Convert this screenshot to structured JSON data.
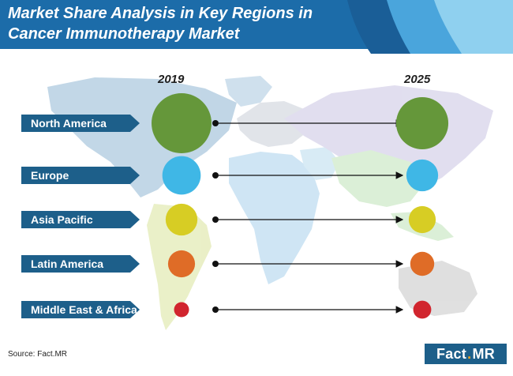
{
  "header": {
    "title_line1": "Market Share Analysis in Key Regions in",
    "title_line2": "Cancer Immunotherapy Market"
  },
  "chart_data": {
    "type": "bubble",
    "title": "Market Share Analysis in Key Regions in Cancer Immunotherapy Market",
    "years": [
      "2019",
      "2025"
    ],
    "categories": [
      "North America",
      "Europe",
      "Asia Pacific",
      "Latin America",
      "Middle East & Africa"
    ],
    "series": [
      {
        "name": "2019",
        "relative_size": [
          1.0,
          0.64,
          0.53,
          0.45,
          0.25
        ]
      },
      {
        "name": "2025",
        "relative_size": [
          0.87,
          0.53,
          0.45,
          0.4,
          0.3
        ]
      }
    ],
    "colors": [
      "#65973a",
      "#3fb7e6",
      "#d7cd24",
      "#df6c27",
      "#d1252e"
    ]
  },
  "footer": {
    "source": "Source: Fact.MR",
    "logo_left": "Fact",
    "logo_dot": ".",
    "logo_right": "MR"
  }
}
